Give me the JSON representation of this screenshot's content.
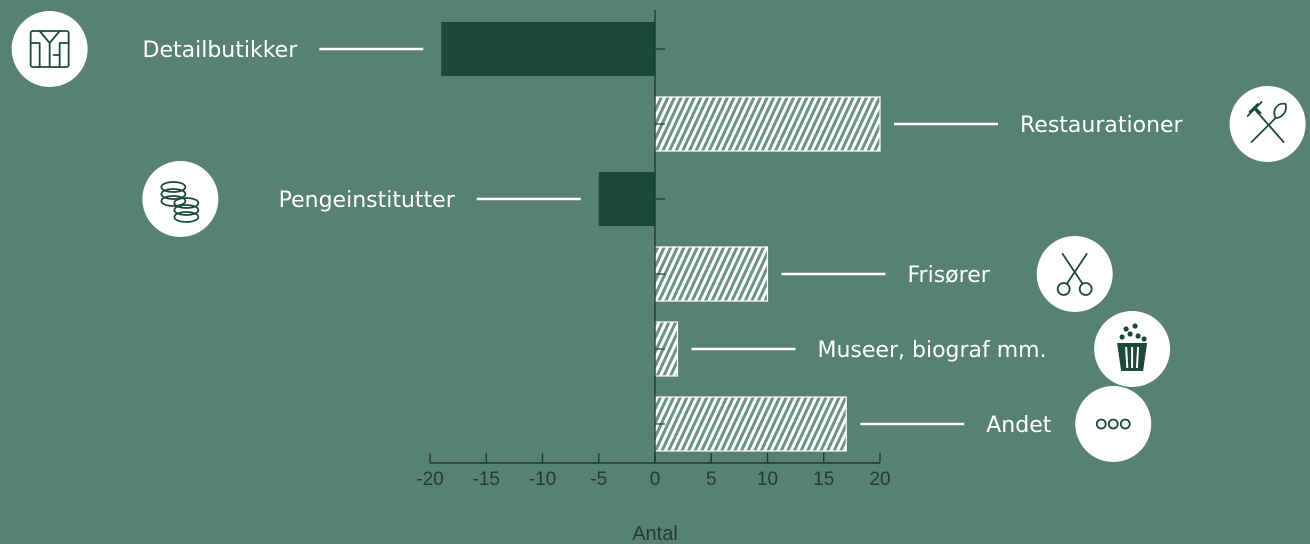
{
  "chart_data": {
    "type": "bar",
    "orientation": "horizontal",
    "categories": [
      "Detailbutikker",
      "Restaurationer",
      "Pengeinstitutter",
      "Frisører",
      "Museer, biograf mm.",
      "Andet"
    ],
    "values": [
      -19,
      20,
      -5,
      10,
      2,
      17
    ],
    "xlabel": "Antal",
    "xlim": [
      -20,
      20
    ],
    "xticks": [
      "-20",
      "-15",
      "-10",
      "-5",
      "0",
      "5",
      "10",
      "15",
      "20"
    ],
    "icons": [
      "shirt-icon",
      "cutlery-icon",
      "coins-icon",
      "scissors-icon",
      "popcorn-icon",
      "more-dots-icon"
    ],
    "colors": {
      "background": "#578171",
      "negative_bar": "#1b4a38",
      "positive_bar": "#ffffff",
      "icon_circle": "#ffffff",
      "icon_stroke": "#1b4a38",
      "label_text": "#ffffff",
      "axis": "#1f3d33"
    }
  }
}
